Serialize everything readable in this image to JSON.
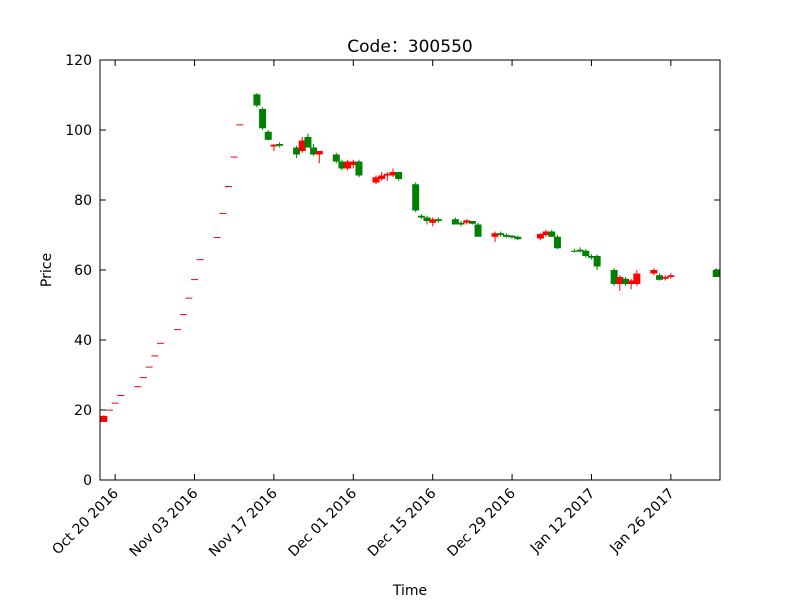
{
  "chart_data": {
    "type": "candlestick",
    "title": "Code：300550",
    "x_label": "Time",
    "y_label": "Price",
    "x": [
      "2016-10-18",
      "2016-10-19",
      "2016-10-20",
      "2016-10-21",
      "2016-10-24",
      "2016-10-25",
      "2016-10-26",
      "2016-10-27",
      "2016-10-28",
      "2016-10-31",
      "2016-11-01",
      "2016-11-02",
      "2016-11-03",
      "2016-11-04",
      "2016-11-07",
      "2016-11-08",
      "2016-11-09",
      "2016-11-10",
      "2016-11-11",
      "2016-11-14",
      "2016-11-15",
      "2016-11-16",
      "2016-11-17",
      "2016-11-18",
      "2016-11-21",
      "2016-11-22",
      "2016-11-23",
      "2016-11-24",
      "2016-11-25",
      "2016-11-28",
      "2016-11-29",
      "2016-11-30",
      "2016-12-01",
      "2016-12-02",
      "2016-12-05",
      "2016-12-06",
      "2016-12-07",
      "2016-12-08",
      "2016-12-09",
      "2016-12-12",
      "2016-12-13",
      "2016-12-14",
      "2016-12-15",
      "2016-12-16",
      "2016-12-19",
      "2016-12-20",
      "2016-12-21",
      "2016-12-22",
      "2016-12-23",
      "2016-12-26",
      "2016-12-27",
      "2016-12-28",
      "2016-12-29",
      "2016-12-30",
      "2017-01-03",
      "2017-01-04",
      "2017-01-05",
      "2017-01-06",
      "2017-01-09",
      "2017-01-10",
      "2017-01-11",
      "2017-01-12",
      "2017-01-13",
      "2017-01-16",
      "2017-01-17",
      "2017-01-18",
      "2017-01-19",
      "2017-01-20",
      "2017-01-23",
      "2017-01-24",
      "2017-01-25",
      "2017-01-26",
      "2017-02-03"
    ],
    "open": [
      16.6,
      20.1,
      22.1,
      24.3,
      26.8,
      29.4,
      32.4,
      35.6,
      39.2,
      43.1,
      47.4,
      52.1,
      57.4,
      63.1,
      69.4,
      76.3,
      84.0,
      92.4,
      101.6,
      110.2,
      106,
      99.5,
      95.3,
      96,
      95,
      94,
      98,
      95,
      93,
      93,
      91,
      89,
      90,
      91,
      85,
      86,
      87,
      87,
      88,
      84.5,
      75.5,
      75,
      73.5,
      74.5,
      74.5,
      73.5,
      73.5,
      74,
      73,
      69.5,
      70.5,
      70,
      69.8,
      69.5,
      69,
      70,
      71,
      69.5,
      65.5,
      65.8,
      65.5,
      64,
      64,
      60,
      56,
      57.5,
      56,
      56,
      59,
      58.5,
      57.5,
      58,
      60
    ],
    "high": [
      18.5,
      20.1,
      22.1,
      24.3,
      26.8,
      29.4,
      32.4,
      35.6,
      39.2,
      43.1,
      47.4,
      52.1,
      57.4,
      63.1,
      69.4,
      76.3,
      84.0,
      92.4,
      101.6,
      110.5,
      106.5,
      100,
      96,
      96.5,
      95.5,
      98,
      99,
      96,
      94,
      93.5,
      91.5,
      91.5,
      91.5,
      91.5,
      87,
      88,
      88,
      89,
      88,
      85,
      76,
      75.5,
      75,
      75,
      75,
      74,
      74.5,
      74,
      73.5,
      71,
      71,
      70.5,
      70,
      69.8,
      70.5,
      71.5,
      71.5,
      70,
      66,
      66.5,
      66,
      64.5,
      64.5,
      60.5,
      58.5,
      58,
      57.5,
      60,
      60.5,
      59,
      58.5,
      59,
      60.5
    ],
    "low": [
      16.6,
      20.1,
      22.1,
      24.3,
      26.8,
      29.4,
      32.4,
      35.6,
      39.2,
      43.1,
      47.4,
      52.1,
      57.4,
      63.1,
      69.4,
      76.3,
      84.0,
      92.4,
      101.6,
      106.5,
      100,
      97,
      94,
      95,
      92,
      93.5,
      95,
      92.5,
      90.5,
      90.5,
      88.5,
      88.5,
      89,
      86.5,
      84.5,
      85.5,
      85.5,
      86.5,
      85.5,
      76.5,
      74.5,
      73,
      72.5,
      73.5,
      73,
      72.5,
      73,
      73,
      69.5,
      68,
      69.5,
      69.2,
      69,
      68.5,
      68.5,
      69.5,
      69.5,
      66,
      65,
      65,
      63.5,
      63,
      60,
      55.5,
      54,
      55.5,
      54.5,
      55.5,
      58.5,
      57,
      57,
      57.5,
      58
    ],
    "close": [
      18.3,
      20.1,
      22.1,
      24.3,
      26.8,
      29.4,
      32.4,
      35.6,
      39.2,
      43.1,
      47.4,
      52.1,
      57.4,
      63.1,
      69.4,
      76.3,
      84.0,
      92.4,
      101.6,
      107,
      100.5,
      97.2,
      95.8,
      95.5,
      93,
      97,
      95,
      93,
      94,
      91,
      89,
      91,
      91,
      87,
      86.5,
      87,
      87.5,
      88,
      86,
      77,
      75,
      74,
      74.5,
      74,
      73,
      73,
      74.2,
      73.2,
      69.5,
      70.5,
      70,
      69.5,
      69.3,
      68.8,
      70.3,
      71,
      69.5,
      66.2,
      65.2,
      65.3,
      64,
      63.5,
      61,
      56,
      58,
      56,
      57,
      59,
      60,
      57.2,
      58,
      58.5,
      58
    ],
    "up_color": "#ff0000",
    "down_color": "#008000",
    "xlim": [
      "2016-10-17T08:00",
      "2017-02-03T16:00"
    ],
    "xticks": [
      {
        "value": "2016-10-20",
        "label": "Oct 20 2016"
      },
      {
        "value": "2016-11-03",
        "label": "Nov 03 2016"
      },
      {
        "value": "2016-11-17",
        "label": "Nov 17 2016"
      },
      {
        "value": "2016-12-01",
        "label": "Dec 01 2016"
      },
      {
        "value": "2016-12-15",
        "label": "Dec 15 2016"
      },
      {
        "value": "2016-12-29",
        "label": "Dec 29 2016"
      },
      {
        "value": "2017-01-12",
        "label": "Jan 12 2017"
      },
      {
        "value": "2017-01-26",
        "label": "Jan 26 2017"
      }
    ],
    "ylim": [
      0,
      120
    ],
    "yticks": [
      0,
      20,
      40,
      60,
      80,
      100,
      120
    ],
    "grid": false
  }
}
